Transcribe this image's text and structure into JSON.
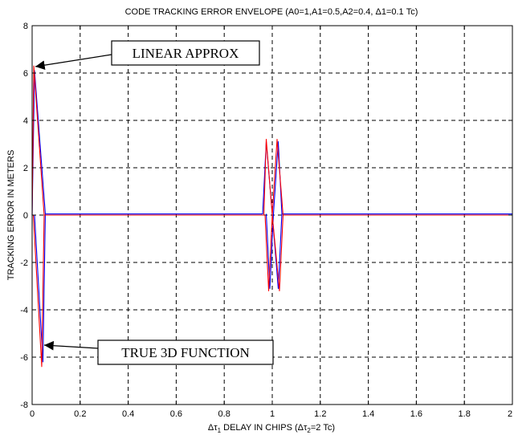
{
  "chart_data": {
    "type": "line",
    "title": "CODE TRACKING ERROR ENVELOPE (A0=1,A1=0.5,A2=0.4, Δ1=0.1 Tc)",
    "xlabel": {
      "delta": "Δ",
      "tau": "τ",
      "sub1": "1",
      "mid": " DELAY IN CHIPS (",
      "sub2": "2",
      "end": "=2 Tc)"
    },
    "ylabel": "TRACKING ERROR IN METERS",
    "xlim": [
      0,
      2
    ],
    "ylim": [
      -8,
      8
    ],
    "xticks": [
      0,
      0.2,
      0.4,
      0.6,
      0.8,
      1,
      1.2,
      1.4,
      1.6,
      1.8,
      2
    ],
    "xtick_labels": [
      "0",
      "0.2",
      "0.4",
      "0.6",
      "0.8",
      "1",
      "1.2",
      "1.4",
      "1.6",
      "1.8",
      "2"
    ],
    "yticks": [
      -8,
      -6,
      -4,
      -2,
      0,
      2,
      4,
      6,
      8
    ],
    "ytick_labels": [
      "-8",
      "-6",
      "-4",
      "-2",
      "0",
      "2",
      "4",
      "6",
      "8"
    ],
    "grid": true,
    "series": [
      {
        "color": "#0000ff",
        "segments": [
          [
            [
              0,
              0
            ],
            [
              0.01,
              6.1
            ],
            [
              0.055,
              0.05
            ],
            [
              0.96,
              0.05
            ],
            [
              0.975,
              3.1
            ],
            [
              1.0,
              0.05
            ],
            [
              1.025,
              -3.1
            ],
            [
              1.04,
              0.05
            ],
            [
              2.0,
              0.05
            ]
          ],
          [
            [
              0.01,
              0
            ],
            [
              0.045,
              -6.2
            ],
            [
              0.055,
              0.05
            ]
          ],
          [
            [
              0.975,
              0.05
            ],
            [
              0.99,
              -3.1
            ],
            [
              1.005,
              0.05
            ],
            [
              1.025,
              3.1
            ],
            [
              1.04,
              0.05
            ]
          ]
        ]
      },
      {
        "color": "#ff0000",
        "segments": [
          [
            [
              0,
              0
            ],
            [
              0.007,
              6.3
            ],
            [
              0.05,
              0
            ],
            [
              0.965,
              0
            ],
            [
              0.975,
              3.2
            ],
            [
              1.0,
              0
            ],
            [
              1.03,
              -3.2
            ],
            [
              1.045,
              0
            ],
            [
              2.0,
              0
            ]
          ],
          [
            [
              0.005,
              0
            ],
            [
              0.04,
              -6.4
            ],
            [
              0.05,
              0
            ]
          ],
          [
            [
              0.97,
              0
            ],
            [
              0.985,
              -3.2
            ],
            [
              1.0,
              0
            ],
            [
              1.02,
              3.2
            ],
            [
              1.045,
              0
            ]
          ]
        ]
      }
    ],
    "annotations": [
      {
        "text": "LINEAR APPROX",
        "point_to": [
          0.01,
          6.3
        ]
      },
      {
        "text": "TRUE 3D FUNCTION",
        "point_to": [
          0.04,
          -5.5
        ]
      }
    ]
  }
}
